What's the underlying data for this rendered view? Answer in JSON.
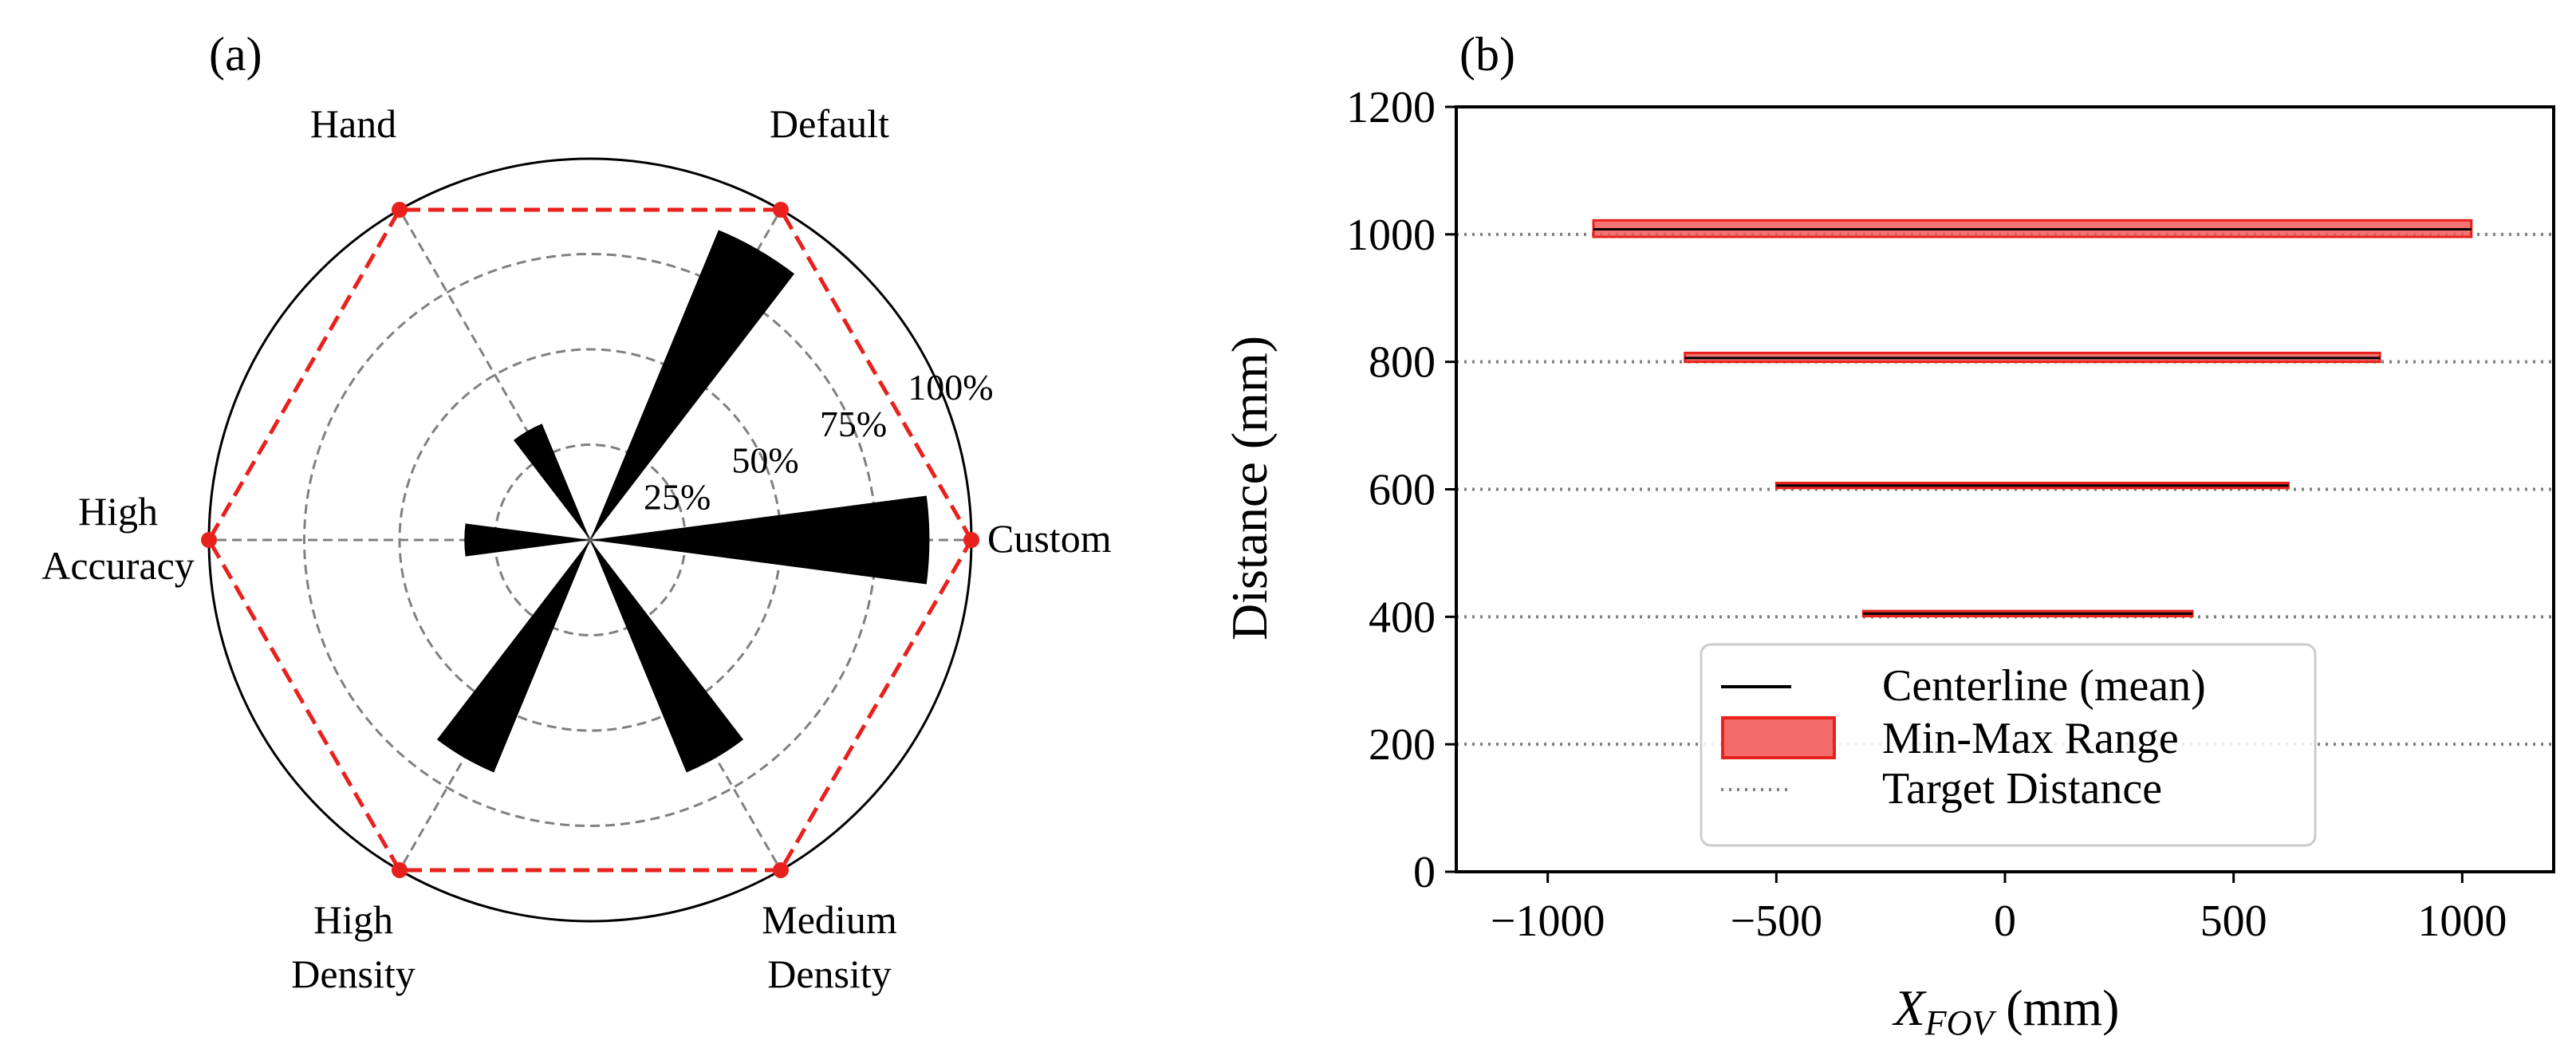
{
  "chart_data": [
    {
      "panel_label": "(a)",
      "type": "polar-bar",
      "categories": [
        "Custom",
        "Default",
        "Hand",
        "High Accuracy",
        "High Density",
        "Medium Density"
      ],
      "category_labels": {
        "custom": [
          "Custom"
        ],
        "default": [
          "Default"
        ],
        "hand": [
          "Hand"
        ],
        "high_accuracy": [
          "High",
          "Accuracy"
        ],
        "high_density": [
          "High",
          "Density"
        ],
        "medium_density": [
          "Medium",
          "Density"
        ]
      },
      "category_angles_deg": [
        0,
        60,
        120,
        180,
        240,
        300
      ],
      "values_percent": [
        89,
        88,
        33,
        33,
        66,
        66
      ],
      "radial_ticks": [
        "25%",
        "50%",
        "75%",
        "100%"
      ],
      "radial_tick_values": [
        25,
        50,
        75,
        100
      ],
      "rmax": 100,
      "reference_hexagon_percent": 100,
      "colors": {
        "bars": "#000000",
        "hexagon": "#e8211c",
        "grid": "#808080"
      }
    },
    {
      "panel_label": "(b)",
      "type": "line",
      "xlabel_main": "X",
      "xlabel_sub": "FOV",
      "xlabel_unit": " (mm)",
      "ylabel": "Distance (mm)",
      "xlim": [
        -1200,
        1200
      ],
      "ylim": [
        0,
        1200
      ],
      "xticks": [
        -1000,
        -500,
        0,
        500,
        1000
      ],
      "xtick_labels": [
        "−1000",
        "−500",
        "0",
        "500",
        "1000"
      ],
      "yticks": [
        0,
        200,
        400,
        600,
        800,
        1000,
        1200
      ],
      "ytick_labels": [
        "0",
        "200",
        "400",
        "600",
        "800",
        "1000",
        "1200"
      ],
      "target_distances": [
        200,
        400,
        600,
        800,
        1000
      ],
      "series": [
        {
          "name": "Centerline (mean)",
          "distance": 400,
          "x_range": [
            -310,
            410
          ],
          "mean": 405,
          "band": [
            401,
            409
          ]
        },
        {
          "name": "Centerline (mean)",
          "distance": 600,
          "x_range": [
            -500,
            620
          ],
          "mean": 606,
          "band": [
            602,
            610
          ]
        },
        {
          "name": "Centerline (mean)",
          "distance": 800,
          "x_range": [
            -700,
            820
          ],
          "mean": 806,
          "band": [
            800,
            814
          ]
        },
        {
          "name": "Centerline (mean)",
          "distance": 1000,
          "x_range": [
            -900,
            1020
          ],
          "mean": 1008,
          "band": [
            996,
            1022
          ]
        }
      ],
      "legend": {
        "position": "lower-center",
        "entries": [
          "Centerline (mean)",
          "Min-Max Range",
          "Target Distance"
        ]
      },
      "colors": {
        "line": "#000000",
        "band": "#f25a5a",
        "band_edge": "#e8211c",
        "target": "#808080"
      }
    }
  ]
}
